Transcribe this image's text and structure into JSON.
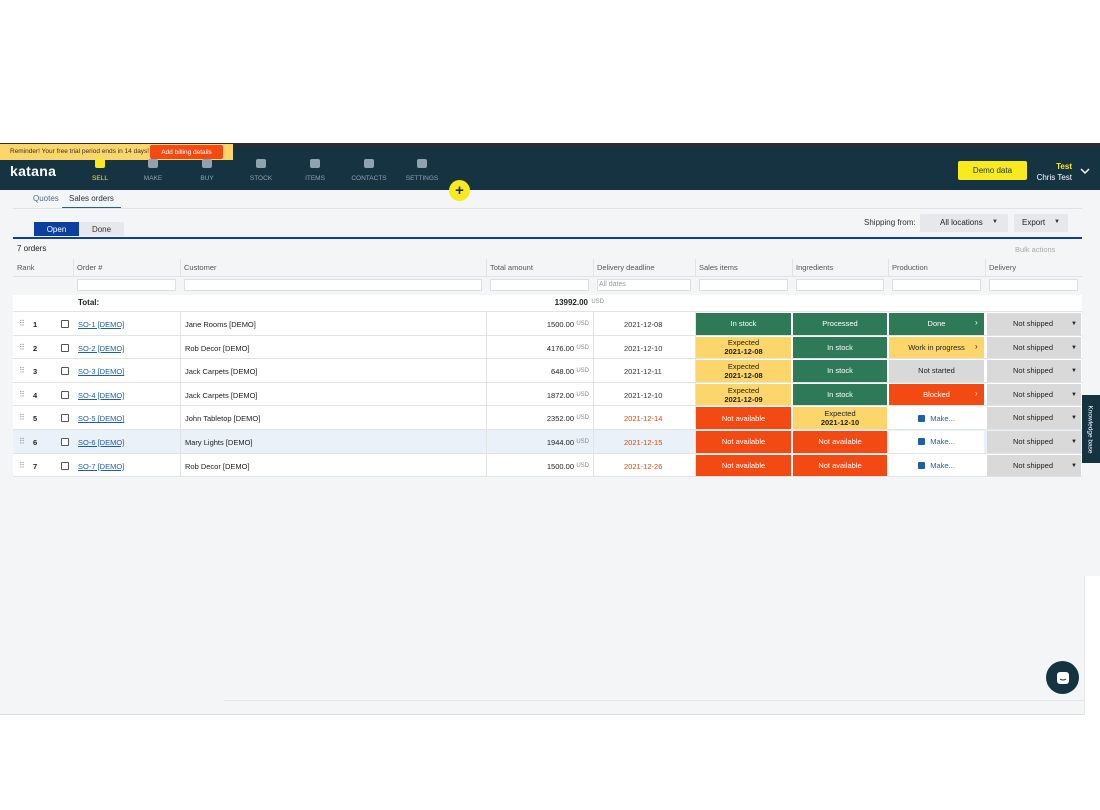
{
  "banner": {
    "text": "Reminder! Your free trial period ends in 14 days!",
    "button": "Add billing details"
  },
  "header": {
    "logo": "katana",
    "nav": [
      {
        "label": "SELL",
        "active": true
      },
      {
        "label": "MAKE",
        "active": false
      },
      {
        "label": "BUY",
        "active": false
      },
      {
        "label": "STOCK",
        "active": false
      },
      {
        "label": "ITEMS",
        "active": false
      },
      {
        "label": "CONTACTS",
        "active": false
      },
      {
        "label": "SETTINGS",
        "active": false
      }
    ],
    "demo_button": "Demo data",
    "user": {
      "company": "Test",
      "name": "Chris Test"
    }
  },
  "tabs": {
    "items": [
      "Quotes",
      "Sales orders"
    ],
    "active": 1
  },
  "toggle": {
    "options": [
      "Open",
      "Done"
    ],
    "active": 0
  },
  "toolbar": {
    "shipping_label": "Shipping from:",
    "location": "All locations",
    "export": "Export",
    "bulk_actions": "Bulk actions"
  },
  "table": {
    "count": "7 orders",
    "columns": [
      "Rank",
      "Order #",
      "Customer",
      "Total amount",
      "Delivery deadline",
      "Sales items",
      "Ingredients",
      "Production",
      "Delivery"
    ],
    "date_filter": "All dates",
    "total": {
      "label": "Total:",
      "amount": "13992.00",
      "currency": "USD"
    },
    "rows": [
      {
        "rank": 1,
        "order": "SO-1 [DEMO]",
        "customer": "Jane Rooms [DEMO]",
        "amount": "1500.00",
        "currency": "USD",
        "deadline": "2021-12-08",
        "deadline_color": "#333333",
        "sales_items": {
          "label": "In stock",
          "color": "#2e7a58",
          "text": "#ffffff"
        },
        "ingredients": {
          "label": "Processed",
          "color": "#2e7a58",
          "text": "#ffffff"
        },
        "production": {
          "label": "Done",
          "color": "#2e7a58",
          "text": "#ffffff",
          "arrow": true
        },
        "delivery": "Not shipped",
        "highlight": false
      },
      {
        "rank": 2,
        "order": "SO-2 [DEMO]",
        "customer": "Rob Decor [DEMO]",
        "amount": "4176.00",
        "currency": "USD",
        "deadline": "2021-12-10",
        "deadline_color": "#333333",
        "sales_items": {
          "label": "Expected",
          "date": "2021-12-08",
          "color": "#fcd66b",
          "text": "#222222"
        },
        "ingredients": {
          "label": "In stock",
          "color": "#2e7a58",
          "text": "#ffffff"
        },
        "production": {
          "label": "Work in progress",
          "color": "#fcd66b",
          "text": "#222222",
          "arrow": true
        },
        "delivery": "Not shipped",
        "highlight": false
      },
      {
        "rank": 3,
        "order": "SO-3 [DEMO]",
        "customer": "Jack Carpets [DEMO]",
        "amount": "648.00",
        "currency": "USD",
        "deadline": "2021-12-11",
        "deadline_color": "#333333",
        "sales_items": {
          "label": "Expected",
          "date": "2021-12-08",
          "color": "#fcd66b",
          "text": "#222222"
        },
        "ingredients": {
          "label": "In stock",
          "color": "#2e7a58",
          "text": "#ffffff"
        },
        "production": {
          "label": "Not started",
          "color": "#d9d9d9",
          "text": "#222222",
          "arrow": false
        },
        "delivery": "Not shipped",
        "highlight": false
      },
      {
        "rank": 4,
        "order": "SO-4 [DEMO]",
        "customer": "Jack Carpets [DEMO]",
        "amount": "1872.00",
        "currency": "USD",
        "deadline": "2021-12-10",
        "deadline_color": "#333333",
        "sales_items": {
          "label": "Expected",
          "date": "2021-12-09",
          "color": "#fcd66b",
          "text": "#222222"
        },
        "ingredients": {
          "label": "In stock",
          "color": "#2e7a58",
          "text": "#ffffff"
        },
        "production": {
          "label": "Blocked",
          "color": "#f24a12",
          "text": "#ffffff",
          "arrow": true
        },
        "delivery": "Not shipped",
        "highlight": false
      },
      {
        "rank": 5,
        "order": "SO-5 [DEMO]",
        "customer": "John Tabletop [DEMO]",
        "amount": "2352.00",
        "currency": "USD",
        "deadline": "2021-12-14",
        "deadline_color": "#d9480f",
        "sales_items": {
          "label": "Not available",
          "color": "#f24a12",
          "text": "#ffffff"
        },
        "ingredients": {
          "label": "Expected",
          "date": "2021-12-10",
          "color": "#fcd66b",
          "text": "#222222"
        },
        "production": {
          "label": "Make...",
          "color": "#ffffff",
          "text": "#1f5fa8",
          "icon": true
        },
        "delivery": "Not shipped",
        "highlight": false
      },
      {
        "rank": 6,
        "order": "SO-6 [DEMO]",
        "customer": "Mary Lights [DEMO]",
        "amount": "1944.00",
        "currency": "USD",
        "deadline": "2021-12-15",
        "deadline_color": "#d9480f",
        "sales_items": {
          "label": "Not available",
          "color": "#f24a12",
          "text": "#ffffff"
        },
        "ingredients": {
          "label": "Not available",
          "color": "#f24a12",
          "text": "#ffffff"
        },
        "production": {
          "label": "Make...",
          "color": "#ffffff",
          "text": "#1f5fa8",
          "icon": true
        },
        "delivery": "Not shipped",
        "highlight": true
      },
      {
        "rank": 7,
        "order": "SO-7 [DEMO]",
        "customer": "Rob Decor [DEMO]",
        "amount": "1500.00",
        "currency": "USD",
        "deadline": "2021-12-26",
        "deadline_color": "#d9480f",
        "sales_items": {
          "label": "Not available",
          "color": "#f24a12",
          "text": "#ffffff"
        },
        "ingredients": {
          "label": "Not available",
          "color": "#f24a12",
          "text": "#ffffff"
        },
        "production": {
          "label": "Make...",
          "color": "#ffffff",
          "text": "#1f5fa8",
          "icon": true
        },
        "delivery": "Not shipped",
        "highlight": false
      }
    ]
  },
  "side_tab": "Knowledge base"
}
